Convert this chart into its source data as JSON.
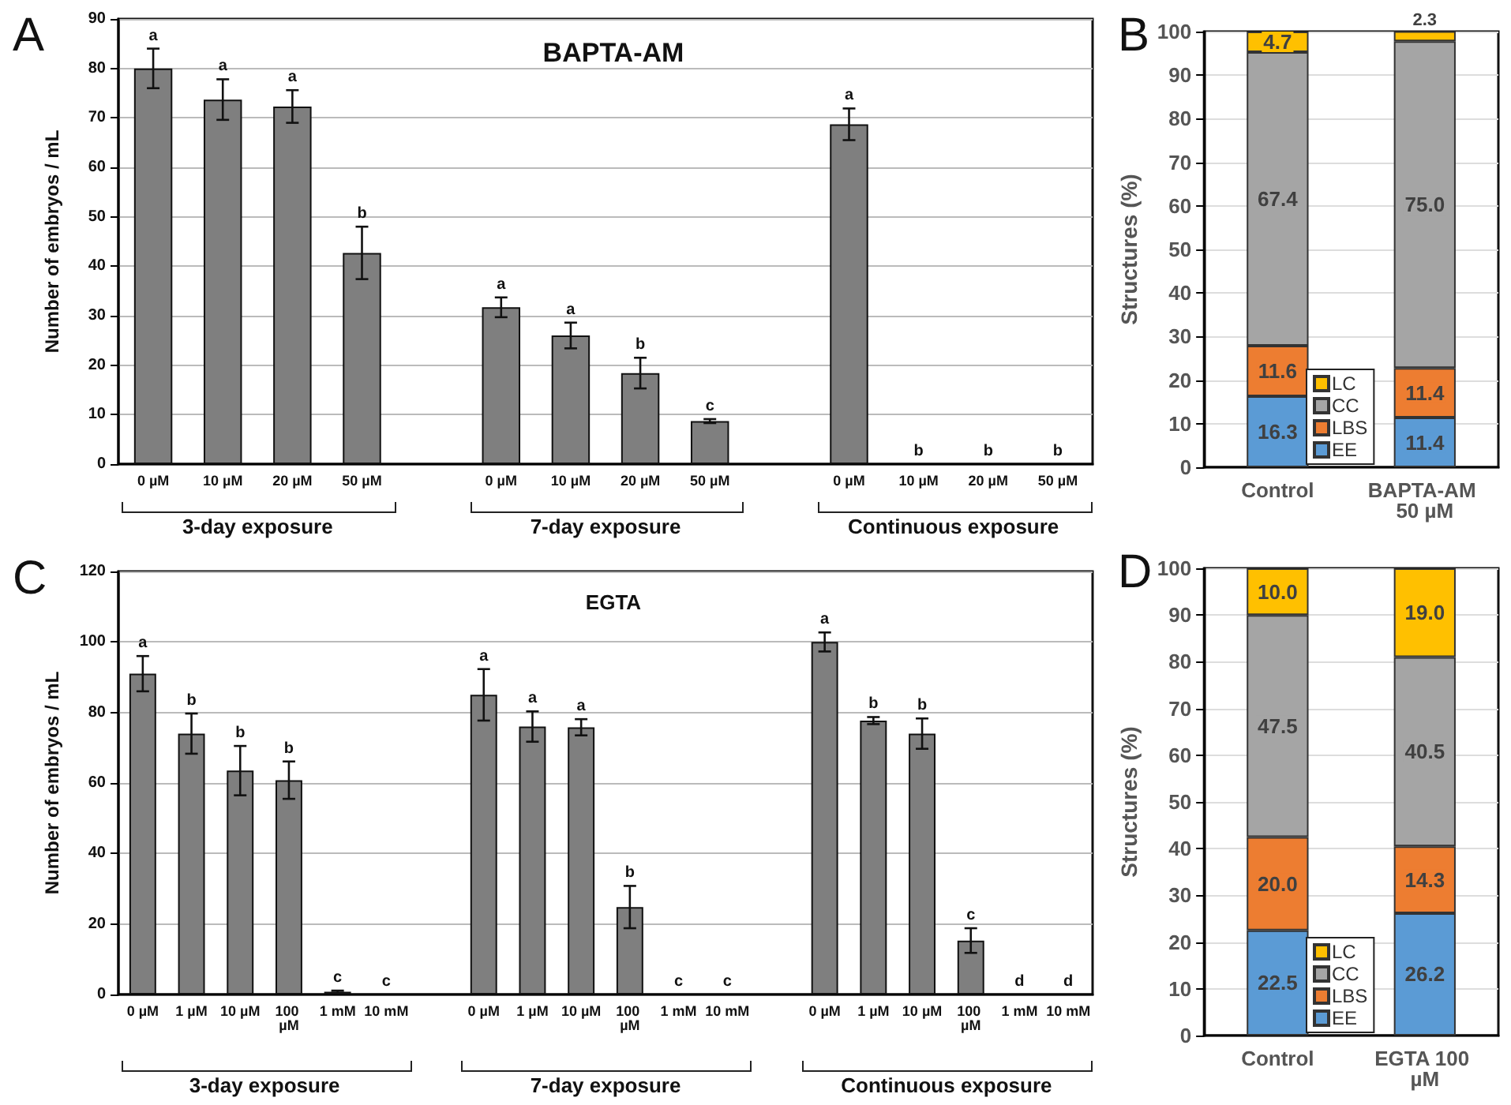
{
  "chart_data": [
    {
      "type": "bar",
      "title": "BAPTA-AM",
      "ylabel": "Number of embryos / mL",
      "color": "#7f7f7f",
      "grid": "y",
      "ylim": [
        0,
        90
      ],
      "yticks": [
        0,
        10,
        20,
        30,
        40,
        50,
        60,
        70,
        80,
        90
      ],
      "categories": [
        "0 µM",
        "10 µM",
        "20 µM",
        "50 µM",
        null,
        "0 µM",
        "10 µM",
        "20 µM",
        "50 µM",
        null,
        "0 µM",
        "10 µM",
        "20 µM",
        "50 µM"
      ],
      "values": [
        80,
        73.7,
        72.3,
        42.7,
        null,
        31.7,
        26,
        18.4,
        8.7,
        null,
        68.7,
        0,
        0,
        0
      ],
      "errors": [
        4,
        4.1,
        3.3,
        5.3,
        null,
        2,
        2.6,
        3.1,
        0.4,
        null,
        3.2,
        null,
        null,
        null
      ],
      "value_labels": [
        "a",
        "a",
        "a",
        "b",
        null,
        "a",
        "a",
        "b",
        "c",
        null,
        "a",
        "b",
        "b",
        "b"
      ],
      "annotations": [
        "A",
        "3-day exposure",
        "7-day exposure",
        "Continuous exposure"
      ]
    },
    {
      "type": "bar",
      "stacked": true,
      "ylabel": "Structures (%)",
      "grid": "y",
      "legend": "bottom",
      "ylim": [
        0,
        100
      ],
      "yticks": [
        0,
        10,
        20,
        30,
        40,
        50,
        60,
        70,
        80,
        90,
        100
      ],
      "categories": [
        "Control",
        "BAPTA-AM 50 µM"
      ],
      "series": [
        {
          "name": "EE",
          "color": "#5b9bd5",
          "values": [
            16.3,
            11.4
          ],
          "value_labels": [
            "16.3",
            "11.4"
          ]
        },
        {
          "name": "LBS",
          "color": "#ed7d31",
          "values": [
            11.6,
            11.4
          ],
          "value_labels": [
            "11.6",
            "11.4"
          ]
        },
        {
          "name": "CC",
          "color": "#a5a5a5",
          "values": [
            67.4,
            75.0
          ],
          "value_labels": [
            "67.4",
            "75.0"
          ]
        },
        {
          "name": "LC",
          "color": "#ffc000",
          "values": [
            4.7,
            2.3
          ],
          "value_labels": [
            "4.7",
            "2.3"
          ]
        }
      ],
      "annotations": [
        "B"
      ]
    },
    {
      "type": "bar",
      "title": "EGTA",
      "ylabel": "Number of embryos / mL",
      "color": "#7f7f7f",
      "grid": "y",
      "ylim": [
        0,
        120
      ],
      "yticks": [
        0,
        20,
        40,
        60,
        80,
        100,
        120
      ],
      "categories": [
        "0 µM",
        "1 µM",
        "10 µM",
        "100 µM",
        "1 mM",
        "10 mM",
        null,
        "0 µM",
        "1 µM",
        "10 µM",
        "100 µM",
        "1 mM",
        "10 mM",
        null,
        "0 µM",
        "1 µM",
        "10 µM",
        "100 µM",
        "1 mM",
        "10 mM"
      ],
      "values": [
        91,
        74,
        63.5,
        60.8,
        0.8,
        0,
        null,
        85,
        76,
        75.8,
        24.8,
        0,
        0,
        null,
        100,
        77.7,
        74,
        15.3,
        0,
        0
      ],
      "errors": [
        5,
        5.7,
        7,
        5.3,
        0.3,
        null,
        null,
        7.3,
        4.3,
        2.3,
        6,
        null,
        null,
        null,
        2.7,
        1,
        4.3,
        3.5,
        null,
        null
      ],
      "value_labels": [
        "a",
        "b",
        "b",
        "b",
        "c",
        "c",
        null,
        "a",
        "a",
        "a",
        "b",
        "c",
        "c",
        null,
        "a",
        "b",
        "b",
        "c",
        "d",
        "d"
      ],
      "annotations": [
        "C",
        "3-day exposure",
        "7-day exposure",
        "Continuous exposure"
      ]
    },
    {
      "type": "bar",
      "stacked": true,
      "ylabel": "Structures (%)",
      "grid": "y",
      "legend": "bottom",
      "ylim": [
        0,
        100
      ],
      "yticks": [
        0,
        10,
        20,
        30,
        40,
        50,
        60,
        70,
        80,
        90,
        100
      ],
      "categories": [
        "Control",
        "EGTA 100 µM"
      ],
      "series": [
        {
          "name": "EE",
          "color": "#5b9bd5",
          "values": [
            22.5,
            26.2
          ],
          "value_labels": [
            "22.5",
            "26.2"
          ]
        },
        {
          "name": "LBS",
          "color": "#ed7d31",
          "values": [
            20.0,
            14.3
          ],
          "value_labels": [
            "20.0",
            "14.3"
          ]
        },
        {
          "name": "CC",
          "color": "#a5a5a5",
          "values": [
            47.5,
            40.5
          ],
          "value_labels": [
            "47.5",
            "40.5"
          ]
        },
        {
          "name": "LC",
          "color": "#ffc000",
          "values": [
            10.0,
            19.0
          ],
          "value_labels": [
            "10.0",
            "19.0"
          ]
        }
      ],
      "annotations": [
        "D"
      ]
    }
  ]
}
